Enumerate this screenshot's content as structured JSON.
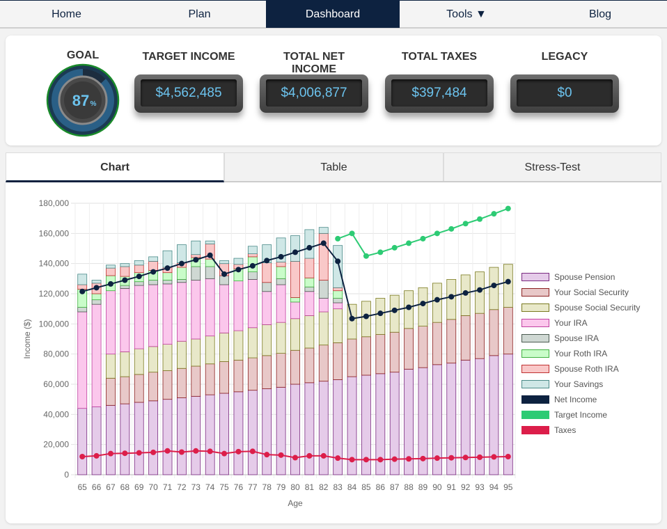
{
  "nav": {
    "items": [
      {
        "label": "Home",
        "active": false
      },
      {
        "label": "Plan",
        "active": false
      },
      {
        "label": "Dashboard",
        "active": true
      },
      {
        "label": "Tools ▼",
        "active": false
      },
      {
        "label": "Blog",
        "active": false
      }
    ]
  },
  "summary": {
    "goal_label": "GOAL",
    "goal_percent": "87",
    "goal_percent_sign": "%",
    "goal_fraction": 0.87,
    "stats": [
      {
        "label": "TARGET INCOME",
        "value": "$4,562,485"
      },
      {
        "label": "TOTAL NET INCOME",
        "value": "$4,006,877"
      },
      {
        "label": "TOTAL TAXES",
        "value": "$397,484"
      },
      {
        "label": "LEGACY",
        "value": "$0"
      }
    ]
  },
  "tabs": [
    {
      "label": "Chart",
      "active": true
    },
    {
      "label": "Table",
      "active": false
    },
    {
      "label": "Stress-Test",
      "active": false
    }
  ],
  "colors": {
    "nav_active": "#0d2240",
    "value_text": "#6cc3ee",
    "gauge_ring": "#1a8a2a"
  },
  "chart_data": {
    "type": "bar",
    "stacked": true,
    "title": "",
    "xlabel": "Age",
    "ylabel": "Income ($)",
    "ylim": [
      0,
      180000
    ],
    "yticks": [
      0,
      20000,
      40000,
      60000,
      80000,
      100000,
      120000,
      140000,
      160000,
      180000
    ],
    "ytick_labels": [
      "0",
      "20,000",
      "40,000",
      "60,000",
      "80,000",
      "100,000",
      "120,000",
      "140,000",
      "160,000",
      "180,000"
    ],
    "grid": true,
    "legend_position": "right",
    "categories": [
      "65",
      "66",
      "67",
      "68",
      "69",
      "70",
      "71",
      "72",
      "73",
      "74",
      "75",
      "76",
      "77",
      "78",
      "79",
      "80",
      "81",
      "82",
      "83",
      "84",
      "85",
      "86",
      "87",
      "88",
      "89",
      "90",
      "91",
      "92",
      "93",
      "94",
      "95"
    ],
    "series": [
      {
        "name": "Spouse Pension",
        "kind": "bar",
        "color": "#e5cbe9",
        "border": "#7a2a80",
        "values": [
          44000,
          45000,
          46000,
          47000,
          48000,
          49000,
          50000,
          51000,
          52000,
          53000,
          54000,
          55000,
          56000,
          57000,
          58000,
          60000,
          61000,
          62000,
          63000,
          65000,
          66000,
          67000,
          68000,
          70000,
          71000,
          73000,
          74000,
          76000,
          77000,
          79000,
          80000
        ]
      },
      {
        "name": "Your Social Security",
        "kind": "bar",
        "color": "#e8c8c8",
        "border": "#8b2020",
        "values": [
          0,
          0,
          18000,
          18000,
          18500,
          19000,
          19000,
          19500,
          20000,
          20500,
          21000,
          21000,
          21500,
          22000,
          22500,
          22500,
          23000,
          24000,
          24500,
          25000,
          25500,
          26000,
          26500,
          27000,
          27500,
          28000,
          29000,
          29500,
          30000,
          30500,
          31000
        ]
      },
      {
        "name": "Spouse Social Security",
        "kind": "bar",
        "color": "#e8e8c9",
        "border": "#7a7a20",
        "values": [
          0,
          0,
          16000,
          16500,
          17000,
          17000,
          17500,
          18000,
          18000,
          18500,
          19000,
          19500,
          20000,
          20500,
          20500,
          21000,
          21500,
          22000,
          22500,
          23000,
          23500,
          24000,
          24500,
          25000,
          25500,
          26000,
          26500,
          27000,
          27500,
          28000,
          28500
        ]
      },
      {
        "name": "Your IRA",
        "kind": "bar",
        "color": "#fbc7ec",
        "border": "#c040a0",
        "values": [
          64000,
          68000,
          42000,
          42000,
          42000,
          41000,
          40000,
          39000,
          39000,
          38000,
          32000,
          33000,
          32000,
          22000,
          25000,
          11000,
          16000,
          9000,
          4000,
          0,
          0,
          0,
          0,
          0,
          0,
          0,
          0,
          0,
          0,
          0,
          0
        ]
      },
      {
        "name": "Spouse IRA",
        "kind": "bar",
        "color": "#cfd8d3",
        "border": "#4a5a50",
        "values": [
          3000,
          3000,
          0,
          2000,
          2500,
          3000,
          2500,
          2000,
          9000,
          8000,
          6000,
          0,
          5000,
          6000,
          4000,
          0,
          3000,
          12000,
          3000,
          0,
          0,
          0,
          0,
          0,
          0,
          0,
          0,
          0,
          0,
          0,
          0
        ]
      },
      {
        "name": "Your Roth IRA",
        "kind": "bar",
        "color": "#c9fcc9",
        "border": "#40b040",
        "values": [
          12000,
          4000,
          10000,
          6000,
          6000,
          6500,
          5000,
          8000,
          6000,
          5000,
          0,
          8000,
          10000,
          0,
          8000,
          3000,
          6000,
          0,
          5000,
          0,
          0,
          0,
          0,
          0,
          0,
          0,
          0,
          0,
          0,
          0,
          0
        ]
      },
      {
        "name": "Spouse Roth IRA",
        "kind": "bar",
        "color": "#f9c8c8",
        "border": "#c03030",
        "values": [
          3000,
          7000,
          5000,
          6500,
          5000,
          6000,
          3500,
          3000,
          2000,
          10000,
          8000,
          3000,
          2000,
          13000,
          3000,
          24000,
          13000,
          31000,
          2000,
          0,
          0,
          0,
          0,
          0,
          0,
          0,
          0,
          0,
          0,
          0,
          0
        ]
      },
      {
        "name": "Your Savings",
        "kind": "bar",
        "color": "#cfe7e6",
        "border": "#4a8a88",
        "values": [
          7000,
          2000,
          2000,
          2000,
          3000,
          3000,
          11000,
          12000,
          9000,
          2000,
          2000,
          4000,
          5000,
          12000,
          16000,
          17000,
          19000,
          4000,
          28000,
          0,
          0,
          0,
          0,
          0,
          0,
          0,
          0,
          0,
          0,
          0,
          0
        ]
      },
      {
        "name": "Net Income",
        "kind": "line",
        "color": "#0d2240",
        "values": [
          121500,
          124000,
          126500,
          129000,
          131500,
          134500,
          137000,
          140000,
          142500,
          145500,
          133000,
          136000,
          138500,
          142000,
          144500,
          147500,
          150500,
          153500,
          141500,
          103500,
          105000,
          107000,
          109000,
          111000,
          113500,
          116000,
          118000,
          120500,
          122500,
          125500,
          128000
        ]
      },
      {
        "name": "Target Income",
        "kind": "line",
        "color": "#2dcb74",
        "values": [
          null,
          null,
          null,
          null,
          null,
          null,
          null,
          null,
          null,
          null,
          null,
          null,
          null,
          null,
          null,
          null,
          null,
          null,
          156500,
          160000,
          145000,
          147500,
          150500,
          153500,
          156500,
          160000,
          163000,
          166500,
          169500,
          173000,
          176500
        ]
      },
      {
        "name": "Taxes",
        "kind": "line",
        "color": "#dc1e4a",
        "values": [
          12000,
          12500,
          14000,
          14200,
          14500,
          14800,
          15800,
          15000,
          15800,
          15500,
          14000,
          15300,
          15500,
          13300,
          13000,
          11300,
          12500,
          12500,
          11000,
          10000,
          10000,
          10000,
          10300,
          10500,
          10700,
          11000,
          11200,
          11400,
          11600,
          11800,
          12000
        ]
      }
    ]
  }
}
